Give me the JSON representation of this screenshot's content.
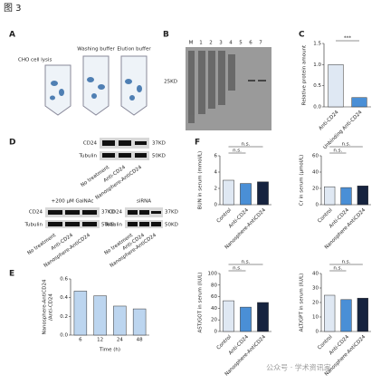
{
  "figure_title": "图 3",
  "panel_letters": [
    "A",
    "B",
    "C",
    "D",
    "E",
    "F"
  ],
  "panel_a": {
    "lysis": "CHO cell lysis",
    "washing": "Washing buffer",
    "elution": "Elution buffer"
  },
  "panel_b": {
    "lanes": [
      "M",
      "1",
      "2",
      "3",
      "4",
      "5",
      "6",
      "7"
    ],
    "marker": "25KD"
  },
  "panel_d": {
    "protein": "CD24",
    "protein_size": "37KD",
    "control": "Tubulin",
    "control_size": "50KD",
    "treatments": [
      "No treatment",
      "Anti-CD24",
      "Nanosphere-AntiCD24"
    ],
    "galnac": "+200 μM GalNAc",
    "sirna": "siRNA"
  },
  "watermark": "公众号 · 学术资讯家",
  "chart_data": [
    {
      "type": "bar",
      "y_label": [
        "Relative protein amount"
      ],
      "categories": [
        "Anti-CD24",
        "Unbinding Anti-CD24"
      ],
      "values": [
        1.0,
        0.22
      ],
      "colors": [
        "#dfe8f3",
        "#4a8fd6"
      ],
      "ylim": [
        0,
        1.5
      ],
      "yticks": [
        {
          "value": 0,
          "label": "0.0"
        },
        {
          "value": 0.5,
          "label": "0.5"
        },
        {
          "value": 1.0,
          "label": "1.0"
        },
        {
          "value": 1.5,
          "label": "1.5"
        }
      ],
      "rotated_labels": true,
      "annotations": [
        "***"
      ]
    },
    {
      "type": "bar",
      "y_label": [
        "Nanosphere-AntiCD24",
        "/Anti-CD24"
      ],
      "x_label": "Time (h)",
      "categories": [
        "6",
        "12",
        "24",
        "48"
      ],
      "values": [
        0.47,
        0.42,
        0.31,
        0.28
      ],
      "colors": [
        "#bcd5ef",
        "#bcd5ef",
        "#bcd5ef",
        "#bcd5ef"
      ],
      "ylim": [
        0,
        0.6
      ],
      "yticks": [
        {
          "value": 0,
          "label": "0.0"
        },
        {
          "value": 0.2,
          "label": "0.2"
        },
        {
          "value": 0.4,
          "label": "0.4"
        },
        {
          "value": 0.6,
          "label": "0.6"
        }
      ],
      "rotated_labels": false,
      "annotations": []
    },
    {
      "type": "bar",
      "y_label": [
        "BUN in serum (mmol/L)"
      ],
      "categories": [
        "Control",
        "Anti-CD24",
        "Nanosphere-AntiCD24"
      ],
      "values": [
        3.0,
        2.6,
        2.8
      ],
      "colors": [
        "#dfe8f3",
        "#4a8fd6",
        "#16233f"
      ],
      "ylim": [
        0,
        6
      ],
      "yticks": [
        0,
        2,
        4,
        6
      ],
      "rotated_labels": true,
      "annotations": [
        "n.s.",
        "n.s."
      ]
    },
    {
      "type": "bar",
      "y_label": [
        "Cr in serum (μmol/L)"
      ],
      "categories": [
        "Control",
        "Anti-CD24",
        "Nanosphere-AntiCD24"
      ],
      "values": [
        22,
        21,
        23
      ],
      "colors": [
        "#dfe8f3",
        "#4a8fd6",
        "#16233f"
      ],
      "ylim": [
        0,
        60
      ],
      "yticks": [
        0,
        20,
        40,
        60
      ],
      "rotated_labels": true,
      "annotations": [
        "n.s.",
        "n.s."
      ]
    },
    {
      "type": "bar",
      "y_label": [
        "AST/GOT in serum (IU/L)"
      ],
      "categories": [
        "Control",
        "Anti-CD24",
        "Nanosphere-AntiCD24"
      ],
      "values": [
        53,
        42,
        50
      ],
      "colors": [
        "#dfe8f3",
        "#4a8fd6",
        "#16233f"
      ],
      "ylim": [
        0,
        100
      ],
      "yticks": [
        0,
        20,
        40,
        60,
        80,
        100
      ],
      "rotated_labels": true,
      "annotations": [
        "n.s.",
        "n.s."
      ]
    },
    {
      "type": "bar",
      "y_label": [
        "ALT/GPT in serum (IU/L)"
      ],
      "categories": [
        "Control",
        "Anti-CD24",
        "Nanosphere-AntiCD24"
      ],
      "values": [
        25,
        22,
        23
      ],
      "colors": [
        "#dfe8f3",
        "#4a8fd6",
        "#16233f"
      ],
      "ylim": [
        0,
        40
      ],
      "yticks": [
        0,
        10,
        20,
        30,
        40
      ],
      "rotated_labels": true,
      "annotations": [
        "n.s.",
        "n.s."
      ]
    }
  ]
}
